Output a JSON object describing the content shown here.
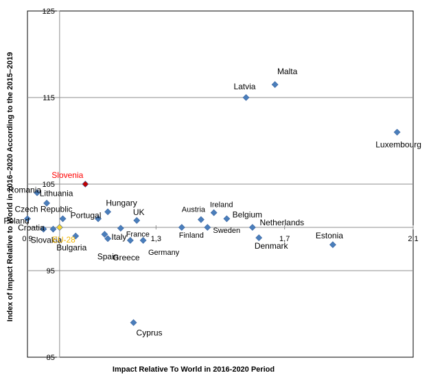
{
  "chart_data": {
    "type": "scatter",
    "title": "",
    "xlabel": "Impact Relative To World in 2016-2020 Period",
    "ylabel": "Index of Impact Relative to World in 2016–2020 According to the 2015–2019",
    "xlim": [
      0.9,
      2.1
    ],
    "ylim": [
      85,
      125
    ],
    "x_ticks": [
      "0,9",
      "1,3",
      "1,7",
      "2,1"
    ],
    "y_ticks": [
      "85",
      "95",
      "105",
      "115",
      "125"
    ],
    "crosshair": {
      "x": 1.0,
      "y": 100
    },
    "grid": "horizontal gridlines at 95, 105, 115, 125",
    "points": [
      {
        "label": "Malta",
        "x": 1.67,
        "y": 116.5,
        "color": "#4a7ebb"
      },
      {
        "label": "Latvia",
        "x": 1.58,
        "y": 115.0,
        "color": "#4a7ebb"
      },
      {
        "label": "Luxembourg",
        "x": 2.05,
        "y": 111.0,
        "color": "#4a7ebb"
      },
      {
        "label": "Slovenia",
        "x": 1.08,
        "y": 105.0,
        "color": "#c00000",
        "label_color": "#ff0000"
      },
      {
        "label": "Romania",
        "x": 0.93,
        "y": 104.0,
        "color": "#4a7ebb"
      },
      {
        "label": "Lithuania",
        "x": 0.96,
        "y": 102.8,
        "color": "#4a7ebb"
      },
      {
        "label": "Poland",
        "x": 0.9,
        "y": 101.0,
        "color": "#4a7ebb"
      },
      {
        "label": "Czech Republic",
        "x": 1.01,
        "y": 101.0,
        "color": "#4a7ebb"
      },
      {
        "label": "Portugal",
        "x": 1.12,
        "y": 101.0,
        "color": "#4a7ebb"
      },
      {
        "label": "Hungary",
        "x": 1.15,
        "y": 101.8,
        "color": "#4a7ebb"
      },
      {
        "label": "UK",
        "x": 1.24,
        "y": 100.8,
        "color": "#4a7ebb"
      },
      {
        "label": "Austria",
        "x": 1.44,
        "y": 100.9,
        "color": "#4a7ebb"
      },
      {
        "label": "Ireland",
        "x": 1.48,
        "y": 101.7,
        "color": "#4a7ebb"
      },
      {
        "label": "Belgium",
        "x": 1.52,
        "y": 101.0,
        "color": "#4a7ebb"
      },
      {
        "label": "Netherlands",
        "x": 1.6,
        "y": 100.0,
        "color": "#4a7ebb"
      },
      {
        "label": "Croatia",
        "x": 0.95,
        "y": 99.8,
        "color": "#4a7ebb"
      },
      {
        "label": "Slovakia",
        "x": 0.98,
        "y": 99.8,
        "color": "#4a7ebb"
      },
      {
        "label": "EU-28",
        "x": 1.0,
        "y": 100.0,
        "color": "#f5d233",
        "label_color": "#f2b600"
      },
      {
        "label": "Bulgaria",
        "x": 1.05,
        "y": 99.0,
        "color": "#4a7ebb"
      },
      {
        "label": "Italy",
        "x": 1.14,
        "y": 99.2,
        "color": "#4a7ebb"
      },
      {
        "label": "Spain",
        "x": 1.15,
        "y": 98.7,
        "color": "#4a7ebb"
      },
      {
        "label": "France",
        "x": 1.19,
        "y": 99.9,
        "color": "#4a7ebb"
      },
      {
        "label": "Greece",
        "x": 1.22,
        "y": 98.5,
        "color": "#4a7ebb"
      },
      {
        "label": "Germany",
        "x": 1.26,
        "y": 98.5,
        "color": "#4a7ebb"
      },
      {
        "label": "Finland",
        "x": 1.38,
        "y": 100.0,
        "color": "#4a7ebb"
      },
      {
        "label": "Sweden",
        "x": 1.46,
        "y": 100.0,
        "color": "#4a7ebb"
      },
      {
        "label": "Denmark",
        "x": 1.62,
        "y": 98.8,
        "color": "#4a7ebb"
      },
      {
        "label": "Estonia",
        "x": 1.85,
        "y": 98.0,
        "color": "#4a7ebb"
      },
      {
        "label": "Cyprus",
        "x": 1.23,
        "y": 89.0,
        "color": "#4a7ebb"
      }
    ]
  }
}
